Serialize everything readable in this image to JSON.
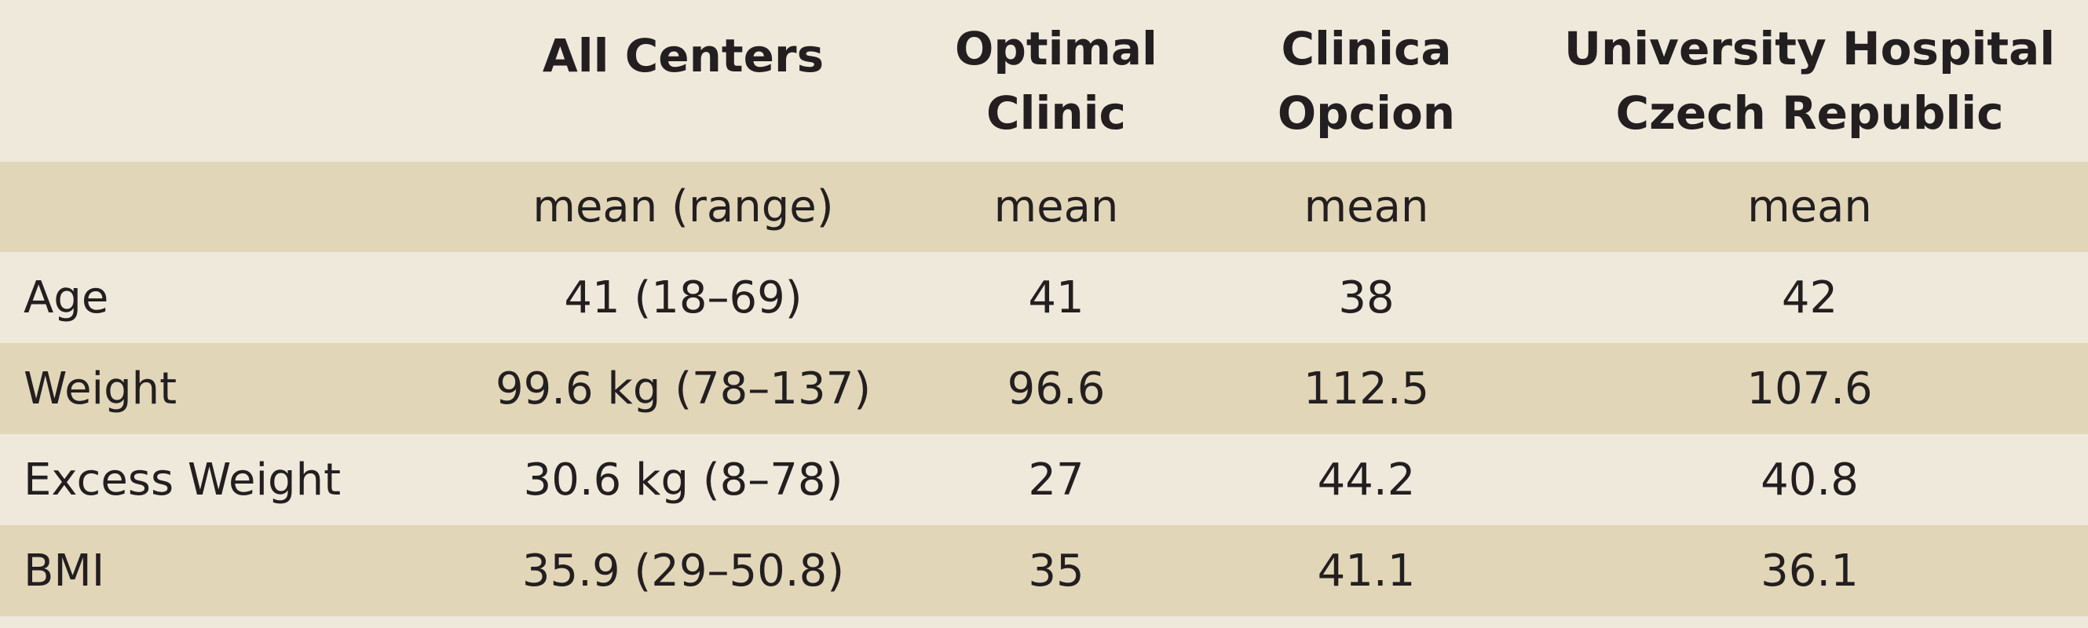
{
  "table": {
    "headers": [
      "",
      "All Centers",
      "Optimal Clinic",
      "Clinica Opcion",
      "University Hospital Czech Republic"
    ],
    "header_lines": [
      [
        ""
      ],
      [
        "All Centers"
      ],
      [
        "Optimal",
        "Clinic"
      ],
      [
        "Clinica",
        "Opcion"
      ],
      [
        "University Hospital",
        "Czech Republic"
      ]
    ],
    "subheaders": [
      "",
      "mean (range)",
      "mean",
      "mean",
      "mean"
    ],
    "rows": [
      {
        "label": "Age",
        "cells": [
          "41 (18–69)",
          "41",
          "38",
          "42"
        ]
      },
      {
        "label": "Weight",
        "cells": [
          "99.6 kg (78–137)",
          "96.6",
          "112.5",
          "107.6"
        ]
      },
      {
        "label": "Excess Weight",
        "cells": [
          "30.6 kg (8–78)",
          "27",
          "44.2",
          "40.8"
        ]
      },
      {
        "label": "BMI",
        "cells": [
          "35.9 (29–50.8)",
          "35",
          "41.1",
          "36.1"
        ]
      }
    ]
  }
}
